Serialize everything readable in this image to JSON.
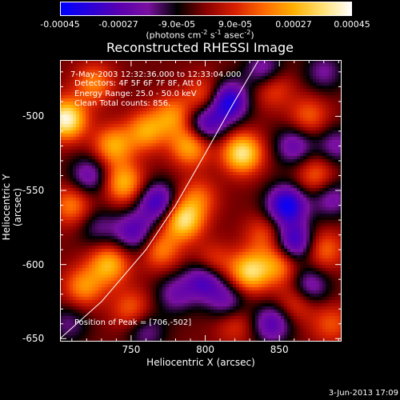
{
  "colorbar": {
    "ticks": [
      "-0.00045",
      "-0.00027",
      "-9.0e-05",
      "9.0e-05",
      "0.00027",
      "0.00045"
    ],
    "units_prefix": "(photons cm",
    "units_exp1": "-2",
    "units_mid1": " s",
    "units_exp2": "-1",
    "units_mid2": " asec",
    "units_exp3": "-2",
    "units_suffix": ")",
    "colors": [
      "#0000ff",
      "#2a00d8",
      "#5a00b0",
      "#7a10a0",
      "#000000",
      "#8a0000",
      "#d82000",
      "#ff6a00",
      "#ffb000",
      "#ffe070",
      "#ffffff"
    ]
  },
  "chart_data": {
    "type": "heatmap",
    "title": "Reconstructed RHESSI Image",
    "xlabel": "Heliocentric X (arcsec)",
    "ylabel": "Heliocentric Y (arcsec)",
    "xlim": [
      702,
      892
    ],
    "ylim": [
      -652,
      -462
    ],
    "xticks": [
      750,
      800,
      850
    ],
    "yticks": [
      -500,
      -550,
      -600,
      -650
    ],
    "clim": [
      -0.00045,
      0.00045
    ],
    "annotations": [
      "7-May-2003 12:32:36.000 to 12:33:04.000",
      "Detectors: 4F 5F 6F 7F 8F, Att 0",
      "Energy Range: 25.0 - 50.0 keV",
      "Clean    Total counts: 856."
    ],
    "peak_label": "Position of Peak = [706,-502]",
    "peak": [
      706,
      -502
    ],
    "sources": [
      {
        "x": 706,
        "y": -502,
        "v": 0.00045
      },
      {
        "x": 725,
        "y": -478,
        "v": 0.00022
      },
      {
        "x": 738,
        "y": -520,
        "v": 0.00028
      },
      {
        "x": 745,
        "y": -545,
        "v": 0.0003
      },
      {
        "x": 760,
        "y": -510,
        "v": 0.00026
      },
      {
        "x": 778,
        "y": -500,
        "v": 0.00024
      },
      {
        "x": 790,
        "y": -520,
        "v": 0.0003
      },
      {
        "x": 800,
        "y": -487,
        "v": 0.00022
      },
      {
        "x": 825,
        "y": -525,
        "v": 0.0004
      },
      {
        "x": 845,
        "y": -480,
        "v": 0.0002
      },
      {
        "x": 870,
        "y": -500,
        "v": 0.00018
      },
      {
        "x": 875,
        "y": -540,
        "v": 0.0002
      },
      {
        "x": 710,
        "y": -560,
        "v": 0.00022
      },
      {
        "x": 735,
        "y": -600,
        "v": 0.0003
      },
      {
        "x": 718,
        "y": -615,
        "v": 0.00024
      },
      {
        "x": 785,
        "y": -570,
        "v": 0.00038
      },
      {
        "x": 770,
        "y": -590,
        "v": 0.00022
      },
      {
        "x": 795,
        "y": -555,
        "v": 0.00018
      },
      {
        "x": 805,
        "y": -600,
        "v": 0.0002
      },
      {
        "x": 830,
        "y": -605,
        "v": 0.00036
      },
      {
        "x": 850,
        "y": -600,
        "v": 0.00024
      },
      {
        "x": 880,
        "y": -590,
        "v": 0.0002
      },
      {
        "x": 840,
        "y": -580,
        "v": 0.00016
      },
      {
        "x": 750,
        "y": -630,
        "v": 0.00018
      },
      {
        "x": 820,
        "y": -640,
        "v": 0.00014
      },
      {
        "x": 862,
        "y": -625,
        "v": 0.00018
      },
      {
        "x": 885,
        "y": -640,
        "v": 0.00016
      },
      {
        "x": 800,
        "y": -505,
        "v": -0.0003
      },
      {
        "x": 815,
        "y": -490,
        "v": -0.0004
      },
      {
        "x": 768,
        "y": -558,
        "v": -0.00032
      },
      {
        "x": 752,
        "y": -578,
        "v": -0.00026
      },
      {
        "x": 722,
        "y": -540,
        "v": -0.00022
      },
      {
        "x": 860,
        "y": -520,
        "v": -0.00022
      },
      {
        "x": 855,
        "y": -560,
        "v": -0.0004
      },
      {
        "x": 860,
        "y": -585,
        "v": -0.00034
      },
      {
        "x": 885,
        "y": -555,
        "v": -0.0002
      },
      {
        "x": 800,
        "y": -610,
        "v": -0.00032
      },
      {
        "x": 815,
        "y": -625,
        "v": -0.0002
      },
      {
        "x": 845,
        "y": -640,
        "v": -0.00026
      },
      {
        "x": 870,
        "y": -615,
        "v": -0.00024
      },
      {
        "x": 780,
        "y": -620,
        "v": -0.00018
      },
      {
        "x": 760,
        "y": -645,
        "v": -0.00016
      },
      {
        "x": 728,
        "y": -575,
        "v": -0.00014
      },
      {
        "x": 840,
        "y": -470,
        "v": -0.00024
      },
      {
        "x": 880,
        "y": -470,
        "v": -0.00016
      },
      {
        "x": 888,
        "y": -520,
        "v": -0.00018
      },
      {
        "x": 708,
        "y": -640,
        "v": -0.00014
      }
    ],
    "limb": [
      [
        702,
        -650
      ],
      [
        730,
        -625
      ],
      [
        760,
        -590
      ],
      [
        780,
        -560
      ],
      [
        800,
        -525
      ],
      [
        818,
        -493
      ],
      [
        836,
        -462
      ]
    ]
  },
  "datestamp": "3-Jun-2013 17:09"
}
